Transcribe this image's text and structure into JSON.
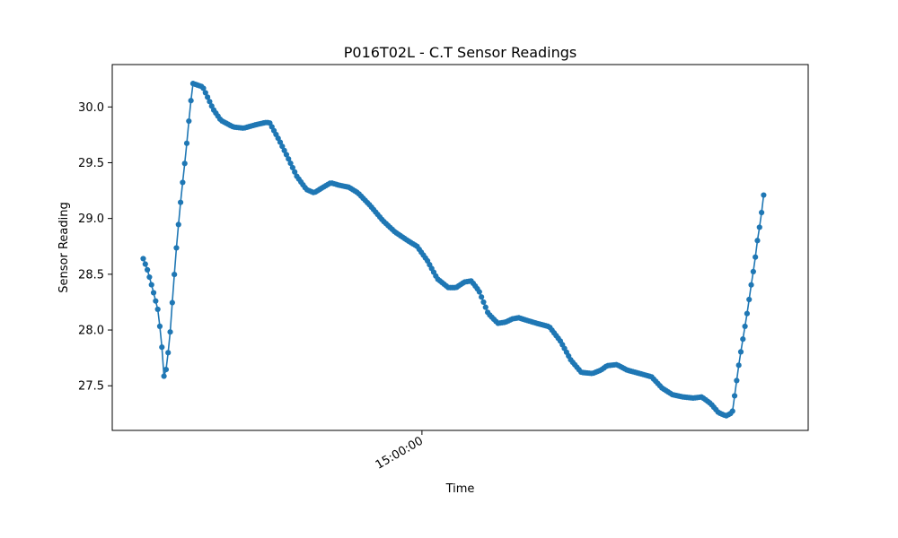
{
  "chart_data": {
    "type": "line",
    "title": "P016T02L - C.T Sensor Readings",
    "xlabel": "Time",
    "ylabel": "Sensor Reading",
    "xlim": [
      0,
      100
    ],
    "ylim": [
      27.1,
      30.38
    ],
    "xticks": [
      {
        "x": 44.5,
        "label": "15:00:00"
      }
    ],
    "yticks": [
      27.5,
      28.0,
      28.5,
      29.0,
      29.5,
      30.0
    ],
    "ytick_labels": [
      "27.5",
      "28.0",
      "28.5",
      "29.0",
      "29.5",
      "30.0"
    ],
    "grid": false,
    "series": [
      {
        "color": "#1f77b4",
        "marker": "circle",
        "keypoints": [
          [
            4.45,
            28.64
          ],
          [
            5.0,
            28.55
          ],
          [
            5.5,
            28.44
          ],
          [
            6.0,
            28.32
          ],
          [
            6.6,
            28.17
          ],
          [
            7.1,
            27.88
          ],
          [
            7.4,
            27.58
          ],
          [
            7.8,
            27.66
          ],
          [
            8.3,
            27.96
          ],
          [
            8.8,
            28.4
          ],
          [
            9.3,
            28.8
          ],
          [
            9.9,
            29.2
          ],
          [
            10.6,
            29.6
          ],
          [
            11.2,
            30.0
          ],
          [
            11.6,
            30.21
          ],
          [
            13.0,
            30.18
          ],
          [
            14.5,
            29.98
          ],
          [
            15.6,
            29.88
          ],
          [
            17.4,
            29.82
          ],
          [
            18.9,
            29.81
          ],
          [
            20.6,
            29.84
          ],
          [
            22.0,
            29.86
          ],
          [
            22.6,
            29.86
          ],
          [
            24.0,
            29.7
          ],
          [
            25.2,
            29.55
          ],
          [
            26.5,
            29.38
          ],
          [
            27.9,
            29.26
          ],
          [
            29.0,
            29.23
          ],
          [
            30.3,
            29.28
          ],
          [
            31.4,
            29.32
          ],
          [
            32.5,
            29.3
          ],
          [
            34.0,
            29.28
          ],
          [
            35.3,
            29.23
          ],
          [
            37.0,
            29.12
          ],
          [
            38.9,
            28.98
          ],
          [
            40.6,
            28.88
          ],
          [
            42.5,
            28.8
          ],
          [
            43.8,
            28.75
          ],
          [
            45.3,
            28.62
          ],
          [
            46.7,
            28.46
          ],
          [
            48.3,
            28.38
          ],
          [
            49.4,
            28.38
          ],
          [
            50.6,
            28.43
          ],
          [
            51.6,
            28.44
          ],
          [
            52.7,
            28.35
          ],
          [
            54.0,
            28.15
          ],
          [
            55.4,
            28.06
          ],
          [
            56.5,
            28.07
          ],
          [
            57.5,
            28.1
          ],
          [
            58.4,
            28.11
          ],
          [
            59.4,
            28.09
          ],
          [
            61.0,
            28.06
          ],
          [
            62.8,
            28.03
          ],
          [
            64.4,
            27.9
          ],
          [
            65.9,
            27.73
          ],
          [
            67.4,
            27.62
          ],
          [
            69.0,
            27.61
          ],
          [
            70.2,
            27.64
          ],
          [
            71.1,
            27.68
          ],
          [
            72.5,
            27.69
          ],
          [
            74.0,
            27.64
          ],
          [
            75.8,
            27.61
          ],
          [
            77.5,
            27.58
          ],
          [
            79.0,
            27.48
          ],
          [
            80.5,
            27.42
          ],
          [
            82.0,
            27.4
          ],
          [
            83.5,
            27.39
          ],
          [
            84.7,
            27.4
          ],
          [
            86.0,
            27.34
          ],
          [
            87.1,
            27.26
          ],
          [
            88.2,
            27.23
          ],
          [
            89.1,
            27.26
          ],
          [
            89.6,
            27.49
          ],
          [
            90.1,
            27.72
          ],
          [
            90.7,
            27.95
          ],
          [
            91.3,
            28.18
          ],
          [
            91.8,
            28.4
          ],
          [
            92.3,
            28.6
          ],
          [
            92.7,
            28.8
          ],
          [
            93.2,
            29.0
          ],
          [
            93.6,
            29.21
          ]
        ],
        "point_count": 300
      }
    ]
  }
}
